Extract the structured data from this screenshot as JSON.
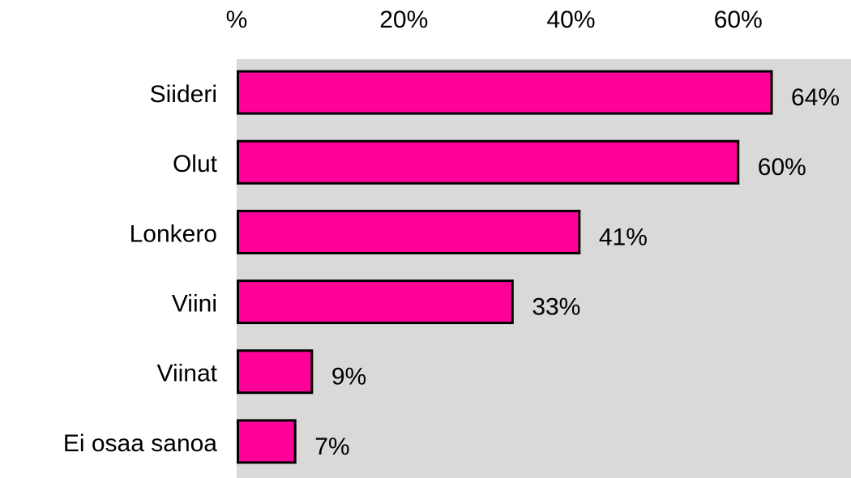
{
  "chart_data": {
    "type": "bar",
    "orientation": "horizontal",
    "categories": [
      "Siideri",
      "Olut",
      "Lonkero",
      "Viini",
      "Viinat",
      "Ei osaa sanoa"
    ],
    "values": [
      64,
      60,
      41,
      33,
      9,
      7
    ],
    "value_labels": [
      "64%",
      "60%",
      "41%",
      "33%",
      "9%",
      "7%"
    ],
    "color": "#ff0099",
    "xlim": [
      0,
      73.5
    ],
    "xticks": [
      {
        "value": 0,
        "label": "%"
      },
      {
        "value": 20,
        "label": "20%"
      },
      {
        "value": 40,
        "label": "40%"
      },
      {
        "value": 60,
        "label": "60%"
      }
    ],
    "grid": false
  }
}
